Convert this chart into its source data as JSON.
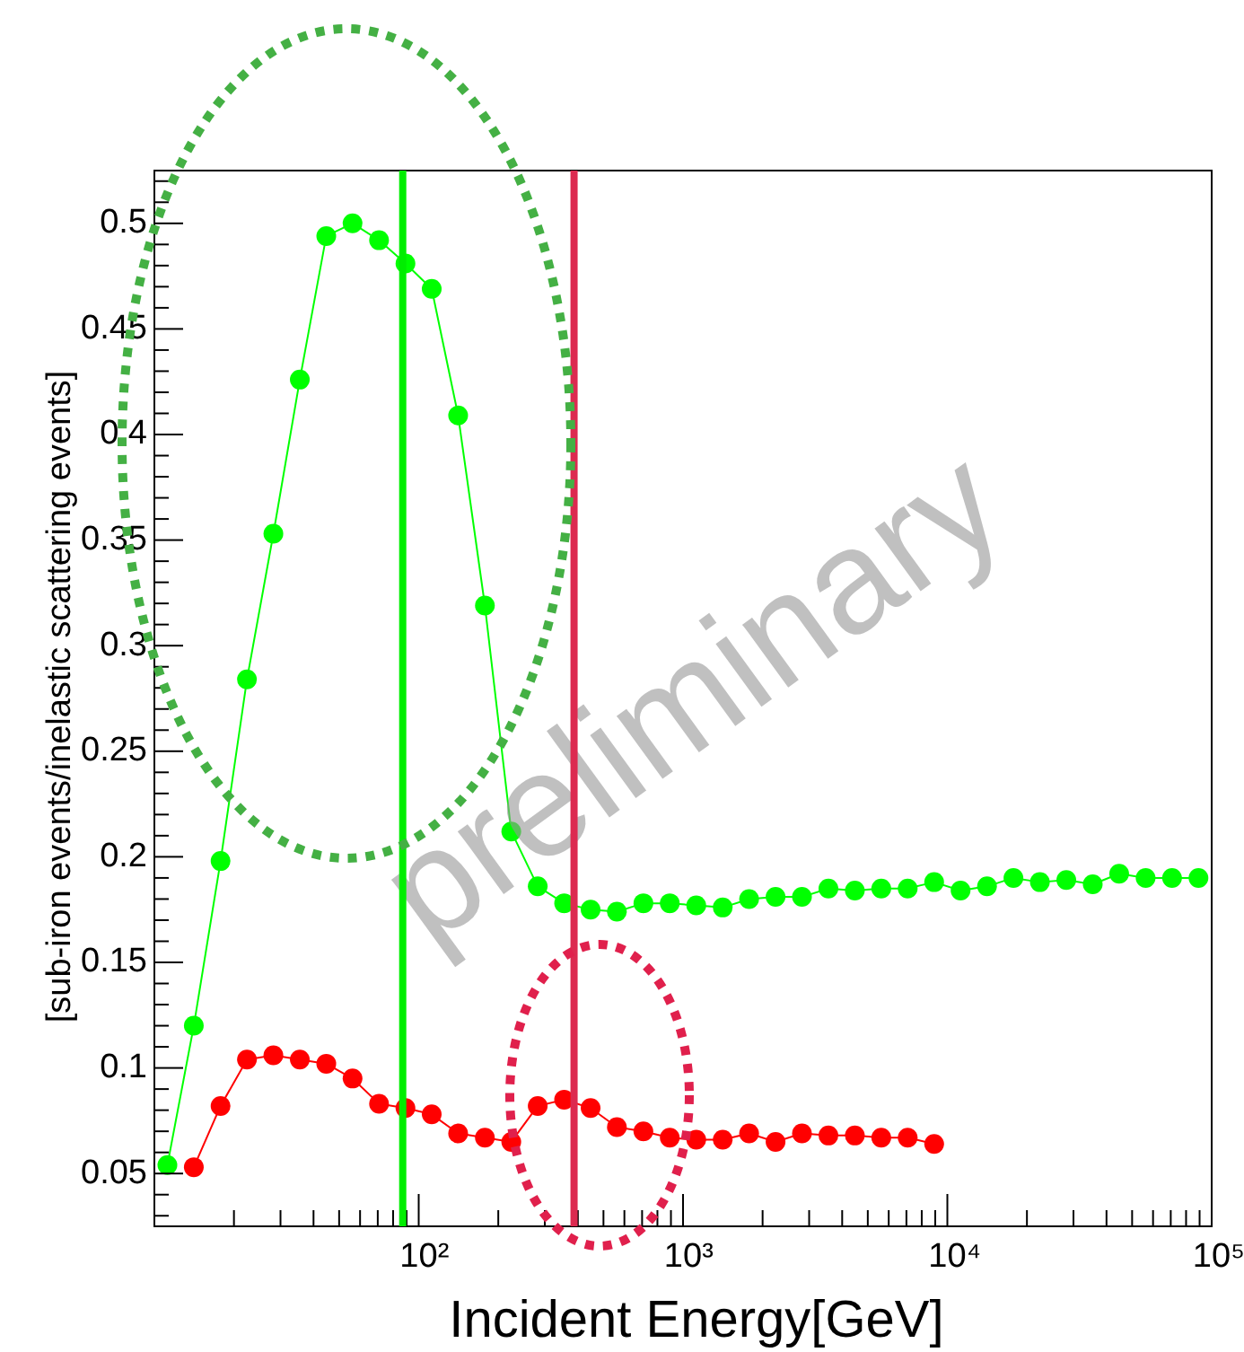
{
  "chart_data": {
    "type": "line",
    "xlabel": "Incident Energy[GeV]",
    "ylabel": "[sub-iron events/inelastic scattering events]",
    "log": "x",
    "marker": "circle",
    "line_style": "solid",
    "legend": false,
    "grid": false,
    "xlim": [
      10,
      100000
    ],
    "ylim": [
      0.025,
      0.525
    ],
    "xticks": [
      {
        "value": 20,
        "label": null
      },
      {
        "value": 30,
        "label": null
      },
      {
        "value": 40,
        "label": null
      },
      {
        "value": 50,
        "label": null
      },
      {
        "value": 60,
        "label": null
      },
      {
        "value": 70,
        "label": null
      },
      {
        "value": 80,
        "label": null
      },
      {
        "value": 90,
        "label": null
      },
      {
        "value": 100,
        "label": "10²"
      },
      {
        "value": 200,
        "label": null
      },
      {
        "value": 300,
        "label": null
      },
      {
        "value": 400,
        "label": null
      },
      {
        "value": 500,
        "label": null
      },
      {
        "value": 600,
        "label": null
      },
      {
        "value": 700,
        "label": null
      },
      {
        "value": 800,
        "label": null
      },
      {
        "value": 900,
        "label": null
      },
      {
        "value": 1000,
        "label": "10³"
      },
      {
        "value": 2000,
        "label": null
      },
      {
        "value": 3000,
        "label": null
      },
      {
        "value": 4000,
        "label": null
      },
      {
        "value": 5000,
        "label": null
      },
      {
        "value": 6000,
        "label": null
      },
      {
        "value": 7000,
        "label": null
      },
      {
        "value": 8000,
        "label": null
      },
      {
        "value": 9000,
        "label": null
      },
      {
        "value": 10000,
        "label": "10⁴"
      },
      {
        "value": 20000,
        "label": null
      },
      {
        "value": 30000,
        "label": null
      },
      {
        "value": 40000,
        "label": null
      },
      {
        "value": 50000,
        "label": null
      },
      {
        "value": 60000,
        "label": null
      },
      {
        "value": 70000,
        "label": null
      },
      {
        "value": 80000,
        "label": null
      },
      {
        "value": 90000,
        "label": null
      },
      {
        "value": 100000,
        "label": "10⁵"
      }
    ],
    "yticks": [
      {
        "value": 0.03,
        "label": null
      },
      {
        "value": 0.04,
        "label": null
      },
      0.05,
      {
        "value": 0.06,
        "label": null
      },
      {
        "value": 0.07,
        "label": null
      },
      {
        "value": 0.08,
        "label": null
      },
      {
        "value": 0.09,
        "label": null
      },
      0.1,
      {
        "value": 0.11,
        "label": null
      },
      {
        "value": 0.12,
        "label": null
      },
      {
        "value": 0.13,
        "label": null
      },
      {
        "value": 0.14,
        "label": null
      },
      0.15,
      {
        "value": 0.16,
        "label": null
      },
      {
        "value": 0.17,
        "label": null
      },
      {
        "value": 0.18,
        "label": null
      },
      {
        "value": 0.19,
        "label": null
      },
      0.2,
      {
        "value": 0.21,
        "label": null
      },
      {
        "value": 0.22,
        "label": null
      },
      {
        "value": 0.23,
        "label": null
      },
      {
        "value": 0.24,
        "label": null
      },
      0.25,
      {
        "value": 0.26,
        "label": null
      },
      {
        "value": 0.27,
        "label": null
      },
      {
        "value": 0.28,
        "label": null
      },
      {
        "value": 0.29,
        "label": null
      },
      0.3,
      {
        "value": 0.31,
        "label": null
      },
      {
        "value": 0.32,
        "label": null
      },
      {
        "value": 0.33,
        "label": null
      },
      {
        "value": 0.34,
        "label": null
      },
      0.35,
      {
        "value": 0.36,
        "label": null
      },
      {
        "value": 0.37,
        "label": null
      },
      {
        "value": 0.38,
        "label": null
      },
      {
        "value": 0.39,
        "label": null
      },
      0.4,
      {
        "value": 0.41,
        "label": null
      },
      {
        "value": 0.42,
        "label": null
      },
      {
        "value": 0.43,
        "label": null
      },
      {
        "value": 0.44,
        "label": null
      },
      0.45,
      {
        "value": 0.46,
        "label": null
      },
      {
        "value": 0.47,
        "label": null
      },
      {
        "value": 0.48,
        "label": null
      },
      {
        "value": 0.49,
        "label": null
      },
      0.5,
      {
        "value": 0.51,
        "label": null
      },
      {
        "value": 0.52,
        "label": null
      }
    ],
    "series": [
      {
        "color": "#00ff00",
        "x": [
          11.2,
          14.1,
          17.8,
          22.4,
          28.2,
          35.5,
          44.7,
          56.2,
          70.8,
          89.1,
          112,
          141,
          178,
          224,
          282,
          355,
          447,
          562,
          708,
          891,
          1122,
          1413,
          1778,
          2239,
          2818,
          3548,
          4467,
          5623,
          7079,
          8913,
          11220,
          14125,
          17783,
          22387,
          28184,
          35481,
          44668,
          56234,
          70795,
          89125
        ],
        "values": [
          0.054,
          0.12,
          0.198,
          0.284,
          0.353,
          0.426,
          0.494,
          0.5,
          0.492,
          0.481,
          0.469,
          0.409,
          0.319,
          0.212,
          0.186,
          0.178,
          0.175,
          0.174,
          0.178,
          0.178,
          0.177,
          0.176,
          0.18,
          0.181,
          0.181,
          0.185,
          0.184,
          0.185,
          0.185,
          0.188,
          0.184,
          0.186,
          0.19,
          0.188,
          0.189,
          0.187,
          0.192,
          0.19,
          0.19,
          0.19
        ]
      },
      {
        "color": "#ff0000",
        "x": [
          14.1,
          17.8,
          22.4,
          28.2,
          35.5,
          44.7,
          56.2,
          70.8,
          89.1,
          112,
          141,
          178,
          224,
          282,
          355,
          447,
          562,
          708,
          891,
          1122,
          1413,
          1778,
          2239,
          2818,
          3548,
          4467,
          5623,
          7079,
          8913
        ],
        "values": [
          0.053,
          0.082,
          0.104,
          0.106,
          0.104,
          0.102,
          0.095,
          0.083,
          0.081,
          0.078,
          0.069,
          0.067,
          0.065,
          0.082,
          0.085,
          0.081,
          0.072,
          0.07,
          0.067,
          0.066,
          0.066,
          0.069,
          0.065,
          0.069,
          0.068,
          0.068,
          0.067,
          0.067,
          0.064
        ]
      }
    ],
    "ref_lines": [
      {
        "axis": "x",
        "value": 87,
        "color": "#00ee00"
      },
      {
        "axis": "x",
        "value": 387,
        "color": "#dc2a50"
      }
    ],
    "annotations": [
      "preliminary"
    ]
  }
}
